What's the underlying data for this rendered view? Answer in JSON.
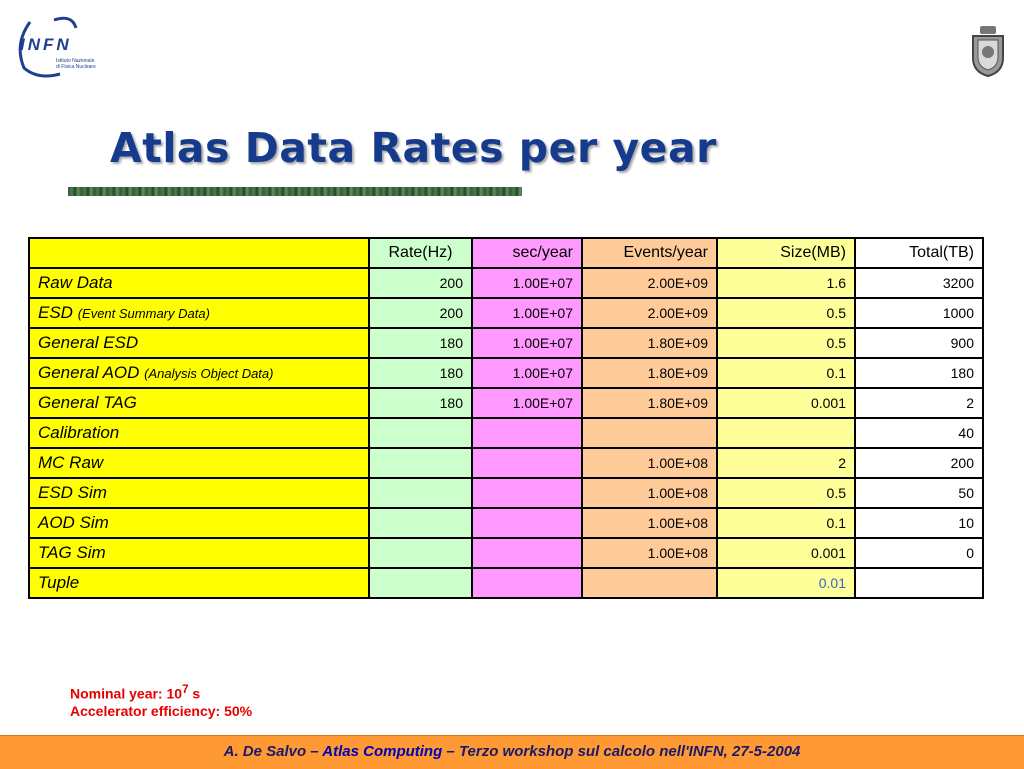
{
  "header": {
    "logo_text": "INFN",
    "logo_subtext_1": "Istituto Nazionale",
    "logo_subtext_2": "di Fisica Nucleare"
  },
  "slide": {
    "title": "Atlas Data Rates per year"
  },
  "table": {
    "columns": [
      "",
      "Rate(Hz)",
      "sec/year",
      "Events/year",
      "Size(MB)",
      "Total(TB)"
    ],
    "rows": [
      {
        "name": "Raw Data",
        "sub": "",
        "rate": "200",
        "sec": "1.00E+07",
        "events": "2.00E+09",
        "size": "1.6",
        "total": "3200"
      },
      {
        "name": "ESD",
        "sub": "(Event Summary Data)",
        "rate": "200",
        "sec": "1.00E+07",
        "events": "2.00E+09",
        "size": "0.5",
        "total": "1000"
      },
      {
        "name": "General ESD",
        "sub": "",
        "rate": "180",
        "sec": "1.00E+07",
        "events": "1.80E+09",
        "size": "0.5",
        "total": "900"
      },
      {
        "name": "General AOD",
        "sub": "(Analysis Object Data)",
        "rate": "180",
        "sec": "1.00E+07",
        "events": "1.80E+09",
        "size": "0.1",
        "total": "180"
      },
      {
        "name": "General TAG",
        "sub": "",
        "rate": "180",
        "sec": "1.00E+07",
        "events": "1.80E+09",
        "size": "0.001",
        "total": "2"
      },
      {
        "name": "Calibration",
        "sub": "",
        "rate": "",
        "sec": "",
        "events": "",
        "size": "",
        "total": "40"
      },
      {
        "name": "MC Raw",
        "sub": "",
        "rate": "",
        "sec": "",
        "events": "1.00E+08",
        "size": "2",
        "total": "200"
      },
      {
        "name": "ESD Sim",
        "sub": "",
        "rate": "",
        "sec": "",
        "events": "1.00E+08",
        "size": "0.5",
        "total": "50"
      },
      {
        "name": "AOD Sim",
        "sub": "",
        "rate": "",
        "sec": "",
        "events": "1.00E+08",
        "size": "0.1",
        "total": "10"
      },
      {
        "name": "TAG Sim",
        "sub": "",
        "rate": "",
        "sec": "",
        "events": "1.00E+08",
        "size": "0.001",
        "total": "0"
      },
      {
        "name": "Tuple",
        "sub": "",
        "rate": "",
        "sec": "",
        "events": "",
        "size": "0.01",
        "total": ""
      }
    ]
  },
  "notes": {
    "line1_prefix": "Nominal year: 10",
    "line1_sup": "7",
    "line1_suffix": " s",
    "line2": "Accelerator efficiency: 50%"
  },
  "footer": {
    "author": "A. De Salvo – ",
    "title": "Atlas Computing",
    "rest": "  – Terzo workshop sul calcolo nell'INFN, 27-5-2004"
  },
  "colors": {
    "title": "#163a8c",
    "name_col": "#ffff00",
    "rate_col": "#ccffcc",
    "sec_col": "#ff99ff",
    "events_col": "#ffcc99",
    "size_col": "#ffff99",
    "footer_bg": "#ff9933",
    "note_red": "#e60000"
  }
}
